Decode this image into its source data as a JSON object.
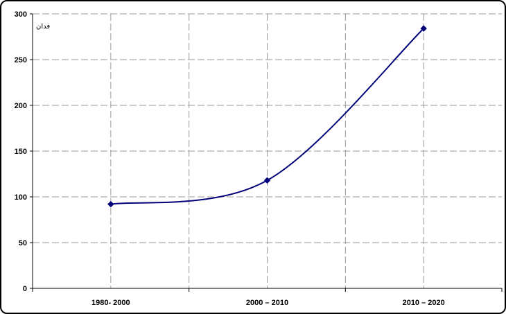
{
  "chart_data": {
    "type": "line",
    "categories": [
      "1980- 2000",
      "2000 – 2010",
      "2010 – 2020"
    ],
    "series": [
      {
        "values": [
          92,
          118,
          284
        ],
        "color": "#00007A"
      }
    ],
    "y_unit_label": "فدان",
    "ylim": [
      0,
      300
    ],
    "y_ticks": [
      0,
      50,
      100,
      150,
      200,
      250,
      300
    ],
    "grid": true,
    "grid_style": "dashed",
    "line_smooth": true,
    "marker": "diamond"
  }
}
